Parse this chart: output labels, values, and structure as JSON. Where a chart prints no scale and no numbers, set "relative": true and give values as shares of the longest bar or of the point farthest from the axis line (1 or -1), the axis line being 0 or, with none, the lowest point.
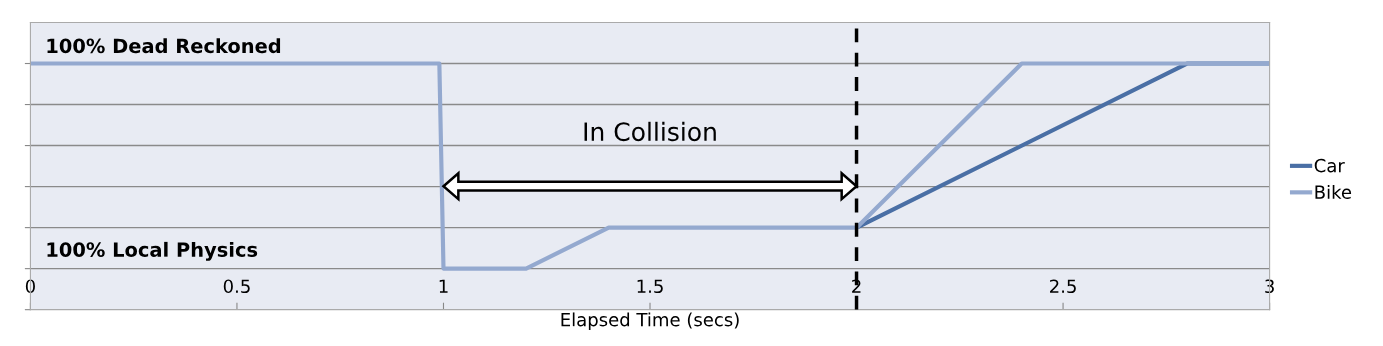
{
  "chart_data": {
    "type": "line",
    "relative": true,
    "xlabel": "Elapsed Time (secs)",
    "xlim": [
      0,
      3
    ],
    "xticks": [
      0,
      0.5,
      1,
      1.5,
      2,
      2.5,
      3
    ],
    "series": [
      {
        "name": "Car",
        "color": "#4a6fa5",
        "x": [
          2,
          2.8,
          3
        ],
        "values": [
          0.333,
          1,
          1
        ]
      },
      {
        "name": "Bike",
        "color": "#94a9cf",
        "x": [
          0,
          0.99,
          1.0,
          1.2,
          1.4,
          2.0,
          2.4,
          3
        ],
        "values": [
          1,
          1,
          0.167,
          0.167,
          0.333,
          0.333,
          1,
          1
        ]
      }
    ],
    "ref_lines": [
      {
        "axis": "x",
        "value": 2,
        "color": "#000000",
        "line_style": "dashed"
      }
    ],
    "annotations": [
      "100% Dead Reckoned",
      "100% Local Physics",
      "In Collision"
    ],
    "grid": "y",
    "legend": "right",
    "marker": "none",
    "line_style": "solid"
  }
}
